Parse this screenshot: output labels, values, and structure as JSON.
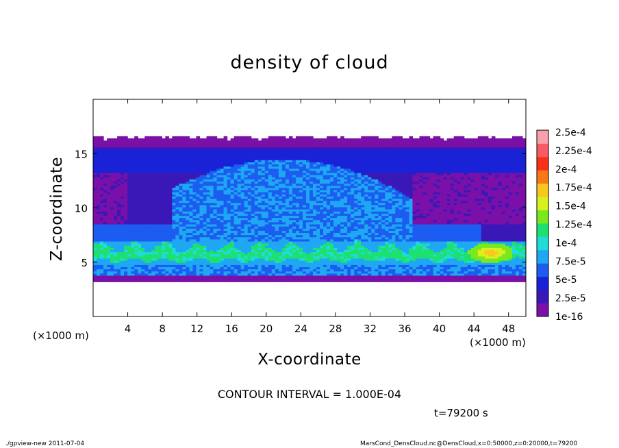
{
  "chart_data": {
    "type": "heatmap",
    "title": "density of cloud",
    "xlabel": "X-coordinate",
    "ylabel": "Z-coordinate",
    "x_unit_label": "(×1000 m)",
    "xlim": [
      0,
      50
    ],
    "ylim": [
      0,
      20
    ],
    "x_ticks": [
      4,
      8,
      12,
      16,
      20,
      24,
      28,
      32,
      36,
      40,
      44,
      48
    ],
    "y_ticks": [
      5,
      10,
      15
    ],
    "cloud_extent": {
      "z_bottom": 3.2,
      "z_top": 16.6
    },
    "colorbar": {
      "labels": [
        "1e-16",
        "2.5e-5",
        "5e-5",
        "7.5e-5",
        "1e-4",
        "1.25e-4",
        "1.5e-4",
        "1.75e-4",
        "2e-4",
        "2.25e-4",
        "2.5e-4"
      ],
      "colors": [
        "#7a10a8",
        "#3a18b8",
        "#1a22d8",
        "#1c5cf0",
        "#1ea8f4",
        "#20dcd8",
        "#1ee070",
        "#7ae81e",
        "#d8f01e",
        "#f8c81e",
        "#f87818",
        "#f83018",
        "#f85a66",
        "#f8a0ac"
      ]
    }
  },
  "contour_text": "CONTOUR INTERVAL = 1.000E-04",
  "time_text": "t=79200 s",
  "footer": {
    "left": "./gpview-new 2011-07-04",
    "right": "MarsCond_DensCloud.nc@DensCloud,x=0:50000,z=0:20000,t=79200"
  }
}
